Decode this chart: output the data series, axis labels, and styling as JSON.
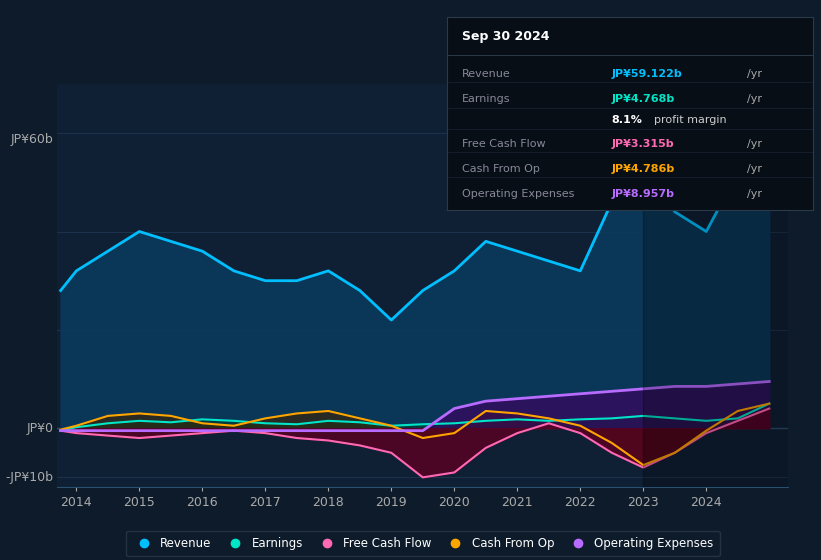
{
  "bg_color": "#0d1b2a",
  "plot_bg": "#0f2035",
  "ylabel_top": "JP¥60b",
  "ylabel_zero": "JP¥0",
  "ylabel_neg": "-JP¥10b",
  "ylim": [
    -12,
    70
  ],
  "xlim": [
    2013.7,
    2025.3
  ],
  "xticks": [
    2014,
    2015,
    2016,
    2017,
    2018,
    2019,
    2020,
    2021,
    2022,
    2023,
    2024
  ],
  "grid_color": "#1e3550",
  "info_box": {
    "title": "Sep 30 2024",
    "rows": [
      {
        "label": "Revenue",
        "value": "JP¥59.122b",
        "value_color": "#00bfff"
      },
      {
        "label": "Earnings",
        "value": "JP¥4.768b",
        "value_color": "#00e5c8"
      },
      {
        "label": "",
        "value": "8.1% profit margin",
        "value_color": "#cccccc"
      },
      {
        "label": "Free Cash Flow",
        "value": "JP¥3.315b",
        "value_color": "#ff69b4"
      },
      {
        "label": "Cash From Op",
        "value": "JP¥4.786b",
        "value_color": "#ffa500"
      },
      {
        "label": "Operating Expenses",
        "value": "JP¥8.957b",
        "value_color": "#b86bff"
      }
    ]
  },
  "legend": [
    {
      "label": "Revenue",
      "color": "#00bfff"
    },
    {
      "label": "Earnings",
      "color": "#00e5c8"
    },
    {
      "label": "Free Cash Flow",
      "color": "#ff69b4"
    },
    {
      "label": "Cash From Op",
      "color": "#ffa500"
    },
    {
      "label": "Operating Expenses",
      "color": "#b86bff"
    }
  ],
  "revenue": {
    "x": [
      2013.75,
      2014.0,
      2014.5,
      2015.0,
      2015.5,
      2016.0,
      2016.5,
      2017.0,
      2017.5,
      2018.0,
      2018.5,
      2019.0,
      2019.5,
      2020.0,
      2020.5,
      2021.0,
      2021.5,
      2022.0,
      2022.5,
      2023.0,
      2023.5,
      2024.0,
      2024.5,
      2025.0
    ],
    "y": [
      28,
      32,
      36,
      40,
      38,
      36,
      32,
      30,
      30,
      32,
      28,
      22,
      28,
      32,
      38,
      36,
      34,
      32,
      46,
      54,
      44,
      40,
      52,
      60
    ],
    "color": "#00bfff",
    "fill_color": "#0a3a5c",
    "lw": 2
  },
  "earnings": {
    "x": [
      2013.75,
      2014.0,
      2014.5,
      2015.0,
      2015.5,
      2016.0,
      2016.5,
      2017.0,
      2017.5,
      2018.0,
      2018.5,
      2019.0,
      2019.5,
      2020.0,
      2020.5,
      2021.0,
      2021.5,
      2022.0,
      2022.5,
      2023.0,
      2023.5,
      2024.0,
      2024.5,
      2025.0
    ],
    "y": [
      -0.5,
      0.2,
      1.0,
      1.5,
      1.2,
      1.8,
      1.5,
      1.0,
      0.8,
      1.5,
      1.2,
      0.5,
      0.8,
      1.0,
      1.5,
      1.8,
      1.5,
      1.8,
      2.0,
      2.5,
      2.0,
      1.5,
      2.0,
      5.0
    ],
    "color": "#00e5c8",
    "fill_color": "#003d35",
    "lw": 1.5
  },
  "free_cash_flow": {
    "x": [
      2013.75,
      2014.0,
      2014.5,
      2015.0,
      2015.5,
      2016.0,
      2016.5,
      2017.0,
      2017.5,
      2018.0,
      2018.5,
      2019.0,
      2019.5,
      2020.0,
      2020.5,
      2021.0,
      2021.5,
      2022.0,
      2022.5,
      2023.0,
      2023.5,
      2024.0,
      2024.5,
      2025.0
    ],
    "y": [
      -0.5,
      -1.0,
      -1.5,
      -2.0,
      -1.5,
      -1.0,
      -0.5,
      -1.0,
      -2.0,
      -2.5,
      -3.5,
      -5.0,
      -10.0,
      -9.0,
      -4.0,
      -1.0,
      1.0,
      -1.0,
      -5.0,
      -8.0,
      -5.0,
      -1.0,
      1.5,
      4.0
    ],
    "color": "#ff69b4",
    "fill_color": "#5a0020",
    "lw": 1.5
  },
  "cash_from_op": {
    "x": [
      2013.75,
      2014.0,
      2014.5,
      2015.0,
      2015.5,
      2016.0,
      2016.5,
      2017.0,
      2017.5,
      2018.0,
      2018.5,
      2019.0,
      2019.5,
      2020.0,
      2020.5,
      2021.0,
      2021.5,
      2022.0,
      2022.5,
      2023.0,
      2023.5,
      2024.0,
      2024.5,
      2025.0
    ],
    "y": [
      -0.3,
      0.5,
      2.5,
      3.0,
      2.5,
      1.0,
      0.5,
      2.0,
      3.0,
      3.5,
      2.0,
      0.5,
      -2.0,
      -1.0,
      3.5,
      3.0,
      2.0,
      0.5,
      -3.0,
      -7.5,
      -5.0,
      -0.5,
      3.5,
      5.0
    ],
    "color": "#ffa500",
    "fill_color": "#3d2200",
    "lw": 1.5
  },
  "op_expenses": {
    "x": [
      2013.75,
      2014.0,
      2014.5,
      2015.0,
      2015.5,
      2016.0,
      2016.5,
      2017.0,
      2017.5,
      2018.0,
      2018.5,
      2019.0,
      2019.5,
      2020.0,
      2020.5,
      2021.0,
      2021.5,
      2022.0,
      2022.5,
      2023.0,
      2023.5,
      2024.0,
      2024.5,
      2025.0
    ],
    "y": [
      -0.5,
      -0.5,
      -0.5,
      -0.5,
      -0.5,
      -0.5,
      -0.5,
      -0.5,
      -0.5,
      -0.5,
      -0.5,
      -0.5,
      -0.5,
      4.0,
      5.5,
      6.0,
      6.5,
      7.0,
      7.5,
      8.0,
      8.5,
      8.5,
      9.0,
      9.5
    ],
    "color": "#b86bff",
    "fill_color": "#3d0060",
    "lw": 2
  }
}
